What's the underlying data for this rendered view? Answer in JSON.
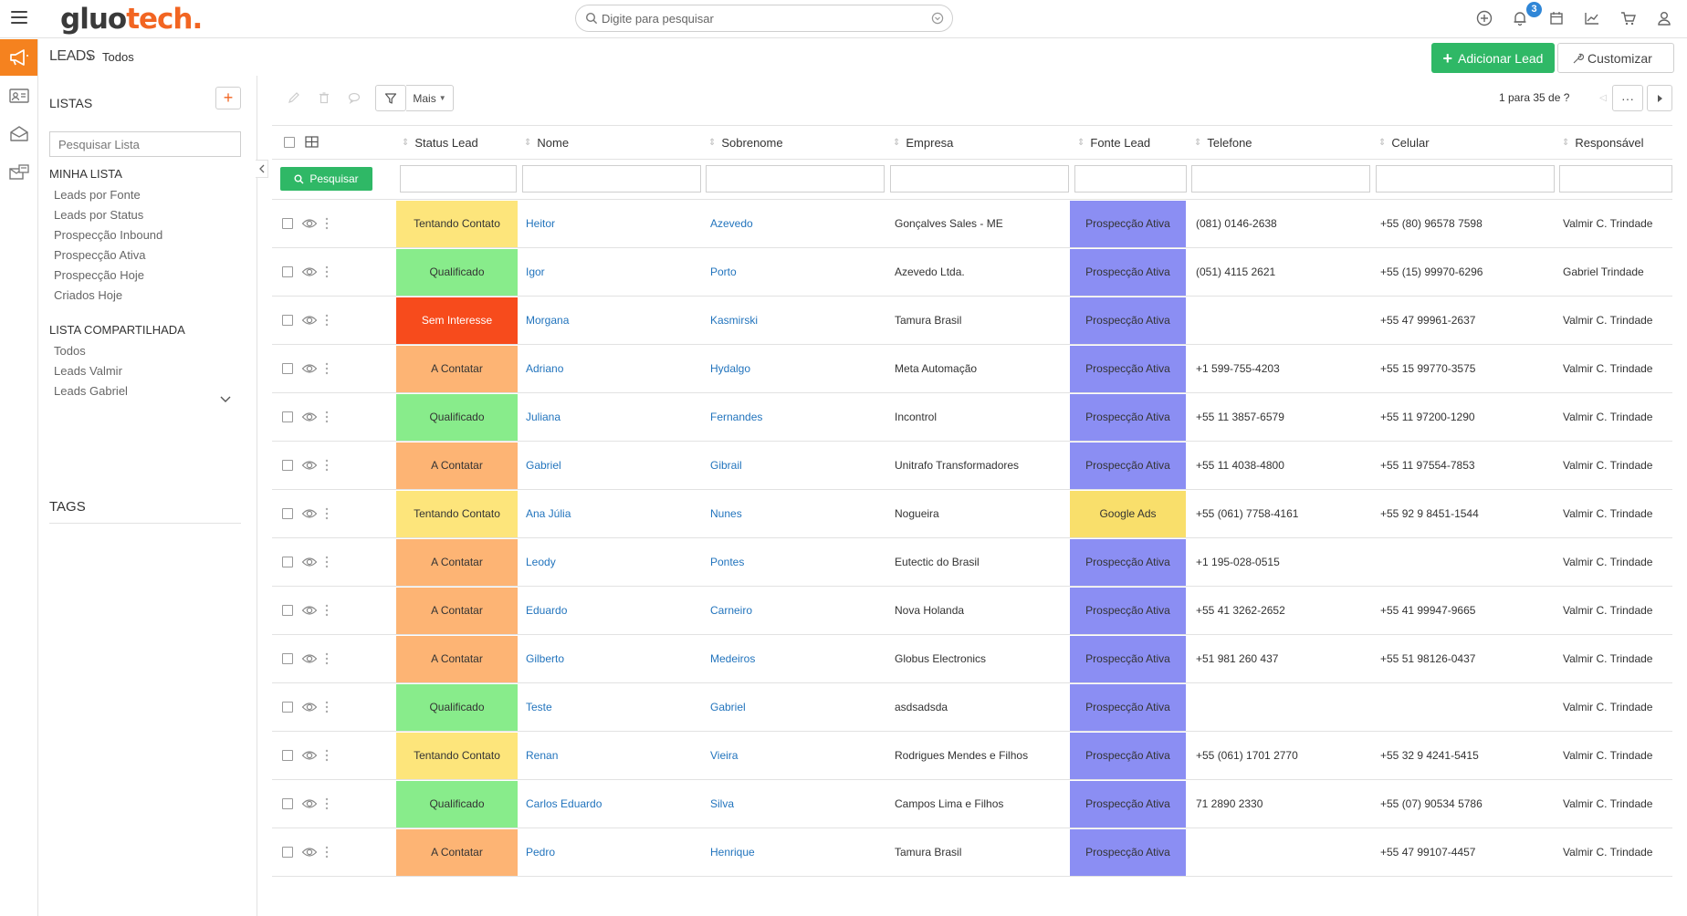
{
  "app": {
    "logo_part1": "gluo",
    "logo_part2": "tech.",
    "search_placeholder": "Digite para pesquisar",
    "notification_count": "3",
    "accent": "#f5821f",
    "link_color": "#2274bd",
    "primary_green": "#2fb866"
  },
  "top_icons": [
    "add-circle-icon",
    "bell-icon",
    "calendar-icon",
    "chart-icon",
    "cart-icon",
    "user-icon"
  ],
  "rail": [
    {
      "name": "megaphone-icon",
      "active": true
    },
    {
      "name": "contact-card-icon",
      "active": false
    },
    {
      "name": "inbox-icon",
      "active": false
    },
    {
      "name": "mail-box-icon",
      "active": false
    }
  ],
  "breadcrumb": {
    "module": "LEADS",
    "current": "Todos"
  },
  "actions": {
    "add_lead": "Adicionar Lead",
    "customize": "Customizar"
  },
  "lists": {
    "title": "LISTAS",
    "add": "+",
    "search_placeholder": "Pesquisar Lista",
    "my_list_title": "MINHA LISTA",
    "my_list": [
      "Leads por Fonte",
      "Leads por Status",
      "Prospecção Inbound",
      "Prospecção Ativa",
      "Prospecção Hoje",
      "Criados Hoje"
    ],
    "shared_title": "LISTA COMPARTILHADA",
    "shared": [
      "Todos",
      "Leads Valmir",
      "Leads Gabriel"
    ],
    "tags_title": "TAGS"
  },
  "toolbar": {
    "more": "Mais",
    "pager": "1 para 35  de ?",
    "pager_more": "···"
  },
  "grid": {
    "search_button": "Pesquisar",
    "columns": [
      "Status Lead",
      "Nome",
      "Sobrenome",
      "Empresa",
      "Fonte Lead",
      "Telefone",
      "Celular",
      "Responsável"
    ],
    "status_colors": {
      "Tentando Contato": "#fde57b",
      "Qualificado": "#88ec8b",
      "Sem Interesse": "#f74b1c",
      "A Contatar": "#fdb474"
    },
    "fonte_colors": {
      "Prospecção Ativa": "#8b8ef3",
      "Google Ads": "#f9df6b"
    },
    "rows": [
      {
        "status": "Tentando Contato",
        "nome": "Heitor",
        "sobrenome": "Azevedo",
        "empresa": "Gonçalves Sales - ME",
        "fonte": "Prospecção Ativa",
        "telefone": "(081) 0146-2638",
        "celular": "+55 (80) 96578 7598",
        "responsavel": "Valmir C. Trindade"
      },
      {
        "status": "Qualificado",
        "nome": "Igor",
        "sobrenome": "Porto",
        "empresa": "Azevedo Ltda.",
        "fonte": "Prospecção Ativa",
        "telefone": "(051) 4115 2621",
        "celular": "+55 (15) 99970-6296",
        "responsavel": "Gabriel Trindade"
      },
      {
        "status": "Sem Interesse",
        "nome": "Morgana",
        "sobrenome": "Kasmirski",
        "empresa": "Tamura Brasil",
        "fonte": "Prospecção Ativa",
        "telefone": "",
        "celular": "+55 47 99961-2637",
        "responsavel": "Valmir C. Trindade"
      },
      {
        "status": "A Contatar",
        "nome": "Adriano",
        "sobrenome": "Hydalgo",
        "empresa": "Meta Automação",
        "fonte": "Prospecção Ativa",
        "telefone": "+1 599-755-4203",
        "celular": "+55 15 99770-3575",
        "responsavel": "Valmir C. Trindade"
      },
      {
        "status": "Qualificado",
        "nome": "Juliana",
        "sobrenome": "Fernandes",
        "empresa": "Incontrol",
        "fonte": "Prospecção Ativa",
        "telefone": "+55 11 3857-6579",
        "celular": "+55 11 97200-1290",
        "responsavel": "Valmir C. Trindade"
      },
      {
        "status": "A Contatar",
        "nome": "Gabriel",
        "sobrenome": "Gibrail",
        "empresa": "Unitrafo Transformadores",
        "fonte": "Prospecção Ativa",
        "telefone": "+55 11 4038-4800",
        "celular": "+55 11 97554-7853",
        "responsavel": "Valmir C. Trindade"
      },
      {
        "status": "Tentando Contato",
        "nome": "Ana Júlia",
        "sobrenome": "Nunes",
        "empresa": "Nogueira",
        "fonte": "Google Ads",
        "telefone": "+55 (061) 7758-4161",
        "celular": "+55 92 9 8451-1544",
        "responsavel": "Valmir C. Trindade"
      },
      {
        "status": "A Contatar",
        "nome": "Leody",
        "sobrenome": "Pontes",
        "empresa": "Eutectic do Brasil",
        "fonte": "Prospecção Ativa",
        "telefone": "+1 195-028-0515",
        "celular": "",
        "responsavel": "Valmir C. Trindade"
      },
      {
        "status": "A Contatar",
        "nome": "Eduardo",
        "sobrenome": "Carneiro",
        "empresa": "Nova Holanda",
        "fonte": "Prospecção Ativa",
        "telefone": "+55 41 3262-2652",
        "celular": "+55 41 99947-9665",
        "responsavel": "Valmir C. Trindade"
      },
      {
        "status": "A Contatar",
        "nome": "Gilberto",
        "sobrenome": "Medeiros",
        "empresa": "Globus Electronics",
        "fonte": "Prospecção Ativa",
        "telefone": "+51 981 260 437",
        "celular": "+55 51 98126-0437",
        "responsavel": "Valmir C. Trindade"
      },
      {
        "status": "Qualificado",
        "nome": "Teste",
        "sobrenome": "Gabriel",
        "empresa": "asdsadsda",
        "fonte": "Prospecção Ativa",
        "telefone": "",
        "celular": "",
        "responsavel": "Valmir C. Trindade"
      },
      {
        "status": "Tentando Contato",
        "nome": "Renan",
        "sobrenome": "Vieira",
        "empresa": "Rodrigues Mendes e Filhos",
        "fonte": "Prospecção Ativa",
        "telefone": "+55 (061) 1701 2770",
        "celular": "+55 32 9 4241-5415",
        "responsavel": "Valmir C. Trindade"
      },
      {
        "status": "Qualificado",
        "nome": "Carlos Eduardo",
        "sobrenome": "Silva",
        "empresa": "Campos Lima e Filhos",
        "fonte": "Prospecção Ativa",
        "telefone": "71 2890 2330",
        "celular": "+55 (07) 90534 5786",
        "responsavel": "Valmir C. Trindade"
      },
      {
        "status": "A Contatar",
        "nome": "Pedro",
        "sobrenome": "Henrique",
        "empresa": "Tamura Brasil",
        "fonte": "Prospecção Ativa",
        "telefone": "",
        "celular": "+55 47 99107-4457",
        "responsavel": "Valmir C. Trindade"
      }
    ]
  }
}
